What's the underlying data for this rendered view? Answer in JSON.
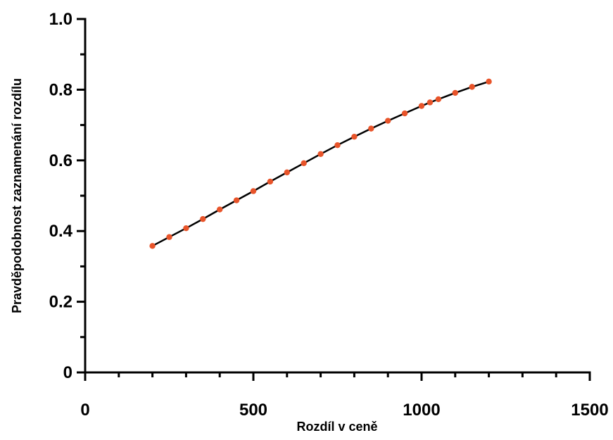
{
  "chart_data": {
    "type": "line",
    "title": "",
    "xlabel": "Rozdíl v ceně",
    "ylabel": "Pravděpodobnost zaznamenání rozdílu",
    "xlim": [
      0,
      1500
    ],
    "ylim": [
      0,
      1.0
    ],
    "x_ticks": [
      0,
      500,
      1000,
      1500
    ],
    "x_tick_labels": [
      "0",
      "500",
      "1000",
      "1500"
    ],
    "y_ticks": [
      0,
      0.2,
      0.4,
      0.6,
      0.8,
      1.0
    ],
    "y_tick_labels": [
      "0",
      "0.2",
      "0.4",
      "0.6",
      "0.8",
      "1.0"
    ],
    "grid": false,
    "line_color": "#000000",
    "marker_color": "#e8542a",
    "series": [
      {
        "x": [
          200,
          250,
          300,
          350,
          400,
          450,
          500,
          550,
          600,
          650,
          700,
          750,
          800,
          850,
          900,
          950,
          1000,
          1025,
          1050,
          1100,
          1150,
          1200
        ],
        "y": [
          0.358,
          0.383,
          0.408,
          0.434,
          0.461,
          0.487,
          0.513,
          0.54,
          0.566,
          0.592,
          0.618,
          0.643,
          0.667,
          0.69,
          0.712,
          0.733,
          0.754,
          0.764,
          0.773,
          0.791,
          0.808,
          0.823
        ]
      }
    ]
  }
}
